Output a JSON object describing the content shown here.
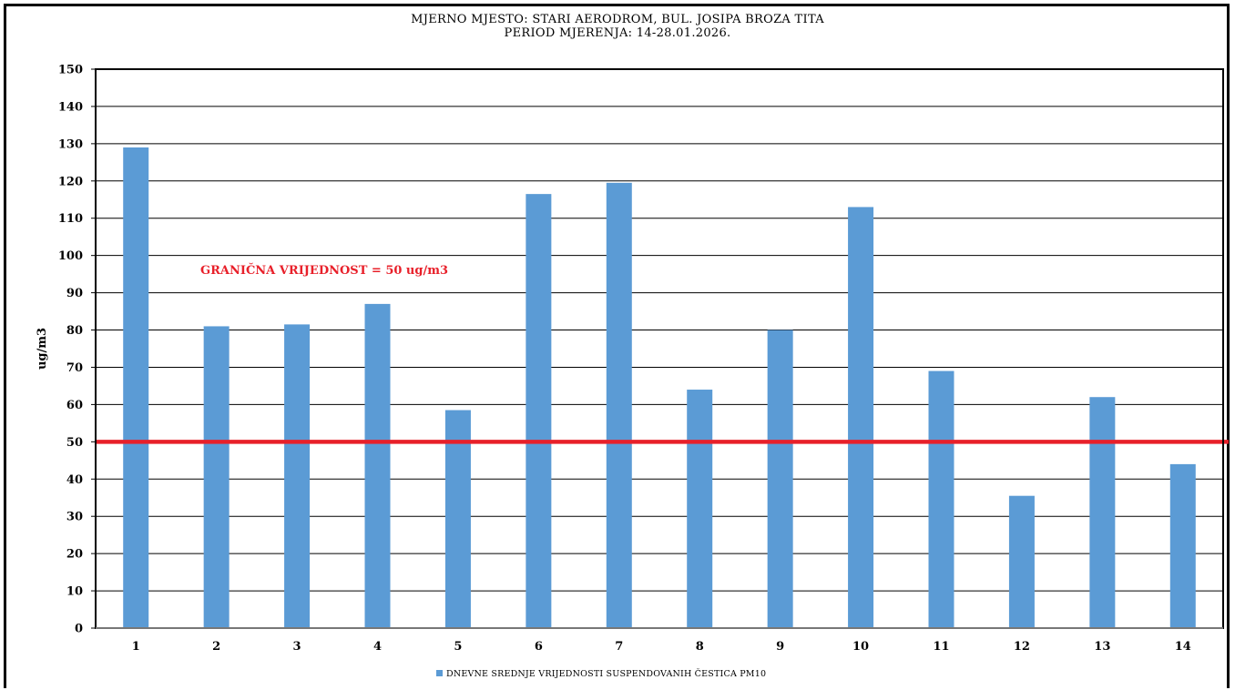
{
  "chart_data": {
    "type": "bar",
    "title": "MJERNO MJESTO: STARI AERODROM, BUL. JOSIPA BROZA TITA",
    "subtitle": "PERIOD MJERENJA:  14-28.01.2026.",
    "xlabel": "",
    "ylabel": "ug/m3",
    "ylim": [
      0,
      150
    ],
    "yticks": [
      0,
      10,
      20,
      30,
      40,
      50,
      60,
      70,
      80,
      90,
      100,
      110,
      120,
      130,
      140,
      150
    ],
    "grid": true,
    "categories": [
      "1",
      "2",
      "3",
      "4",
      "5",
      "6",
      "7",
      "8",
      "9",
      "10",
      "11",
      "12",
      "13",
      "14"
    ],
    "series": [
      {
        "name": "DNEVNE SREDNJE VRIJEDNOSTI SUSPENDOVANIH ČESTICA PM10",
        "color": "#5b9bd5",
        "values": [
          129,
          81,
          81.5,
          87,
          58.5,
          116.5,
          119.5,
          64,
          80,
          113,
          69,
          35.5,
          62,
          44
        ]
      }
    ],
    "reference_line": {
      "value": 50,
      "color": "#e8202a",
      "label": "GRANIČNA VRIJEDNOST = 50 ug/m3"
    },
    "legend_position": "bottom-center"
  }
}
